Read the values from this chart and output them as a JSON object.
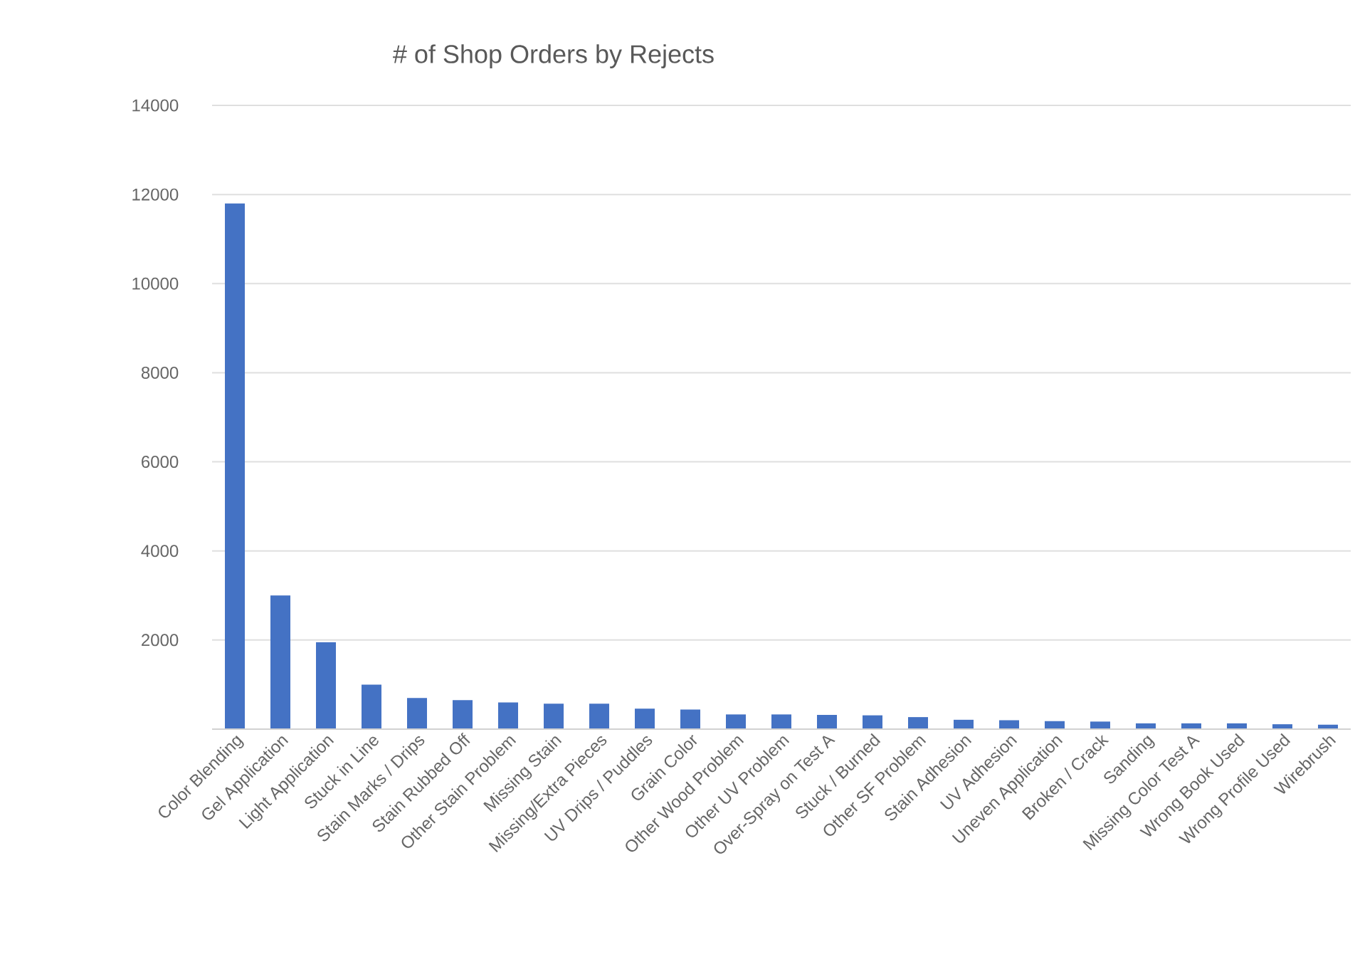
{
  "chart_data": {
    "type": "bar",
    "title": "# of Shop Orders by Rejects",
    "categories": [
      "Color Blending",
      "Gel Application",
      "Light Application",
      "Stuck in Line",
      "Stain Marks / Drips",
      "Stain Rubbed Off",
      "Other Stain Problem",
      "Missing Stain",
      "Missing/Extra Pieces",
      "UV Drips / Puddles",
      "Grain Color",
      "Other Wood Problem",
      "Other UV Problem",
      "Over-Spray on Test A",
      "Stuck / Burned",
      "Other SF Problem",
      "Stain Adhesion",
      "UV Adhesion",
      "Uneven Application",
      "Broken / Crack",
      "Sanding",
      "Missing Color Test A",
      "Wrong Book Used",
      "Wrong Profile Used",
      "Wirebrush"
    ],
    "values": [
      11800,
      3000,
      1950,
      1000,
      700,
      650,
      600,
      570,
      570,
      460,
      440,
      330,
      330,
      320,
      310,
      270,
      210,
      200,
      180,
      170,
      130,
      130,
      130,
      110,
      100
    ],
    "color": "#4472c4",
    "ylim": [
      0,
      14000
    ],
    "yticks": [
      2000,
      4000,
      6000,
      8000,
      10000,
      12000,
      14000
    ],
    "grid": "y"
  }
}
